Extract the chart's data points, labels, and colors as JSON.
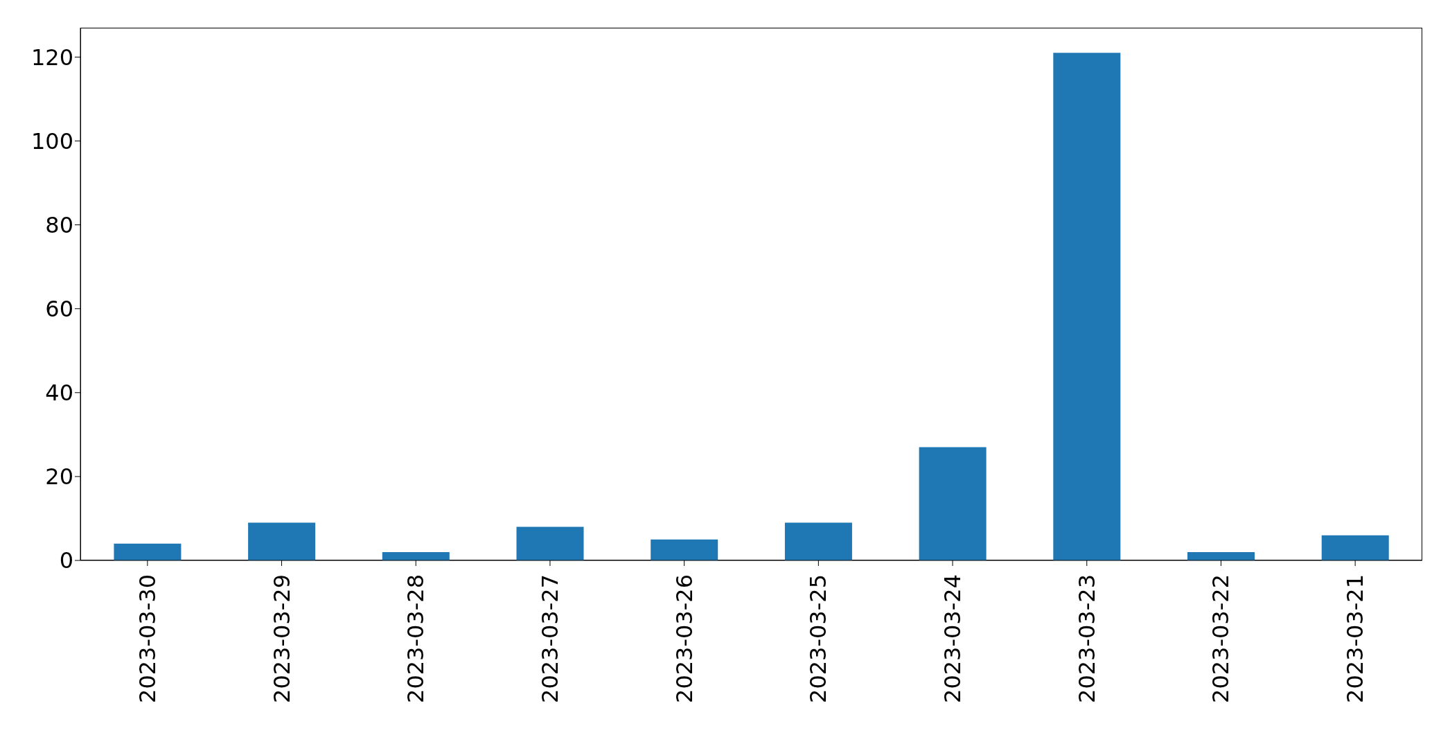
{
  "chart_data": {
    "type": "bar",
    "categories": [
      "2023-03-30",
      "2023-03-29",
      "2023-03-28",
      "2023-03-27",
      "2023-03-26",
      "2023-03-25",
      "2023-03-24",
      "2023-03-23",
      "2023-03-22",
      "2023-03-21"
    ],
    "values": [
      4,
      9,
      2,
      8,
      5,
      9,
      27,
      121,
      2,
      6
    ],
    "color": "#1f77b4",
    "ylim": [
      0,
      127
    ],
    "yticks": [
      0,
      20,
      40,
      60,
      80,
      100,
      120
    ],
    "grid": false
  }
}
